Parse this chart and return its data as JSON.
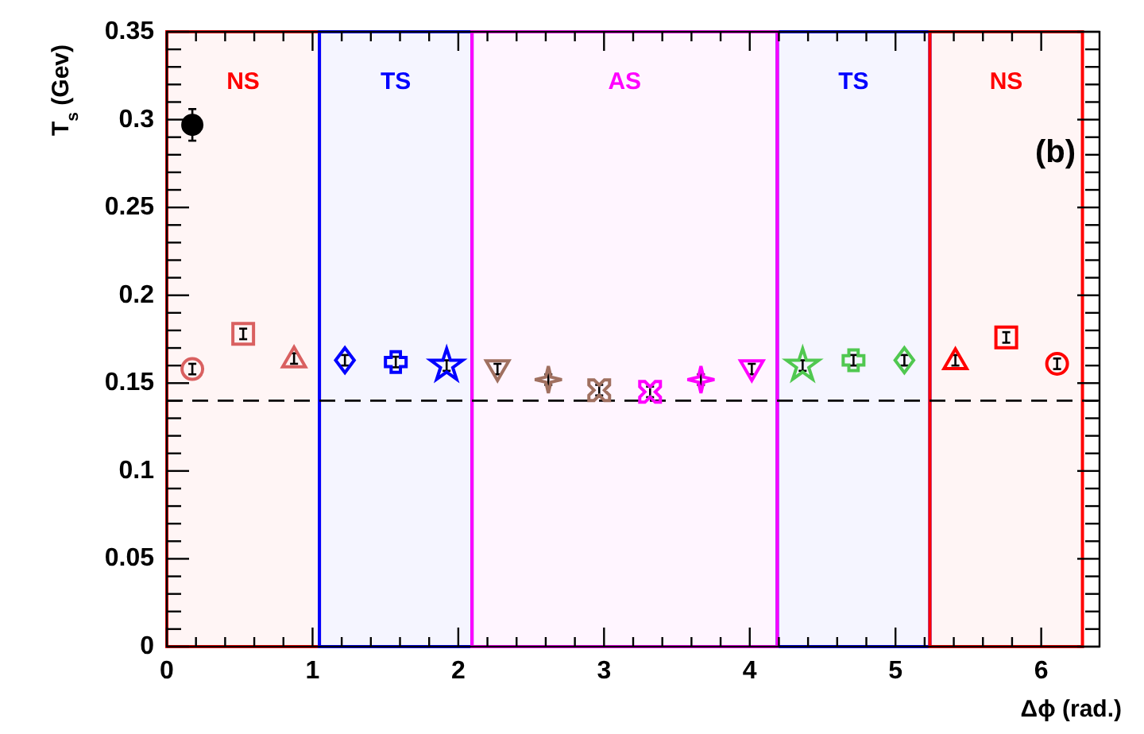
{
  "chart_data": {
    "type": "scatter",
    "xlabel": "Δϕ (rad.)",
    "ylabel": "T$_{s}$ (Gev)",
    "annotations": [
      "(b)"
    ],
    "xlim": [
      0,
      6.4
    ],
    "xticks": [
      0,
      1,
      2,
      3,
      4,
      5,
      6
    ],
    "ylim": [
      0,
      0.35
    ],
    "yticks": [
      0,
      0.05,
      0.1,
      0.15,
      0.2,
      0.25,
      0.3,
      0.35
    ],
    "grid": false,
    "ref_lines": [
      {
        "axis": "y",
        "value": 0.14,
        "color": "#000000",
        "line_style": "dashed"
      }
    ],
    "bands": [
      {
        "axis": "x",
        "from": 4.189,
        "to": 5.236,
        "label": "TS",
        "color": "#0000ff"
      },
      {
        "axis": "x",
        "from": 0,
        "to": 1.047,
        "label": "NS",
        "color": "#ff0000"
      },
      {
        "axis": "x",
        "from": 1.047,
        "to": 2.094,
        "label": "TS",
        "color": "#0000ff"
      },
      {
        "axis": "x",
        "from": 2.094,
        "to": 4.189,
        "label": "AS",
        "color": "#ff00ff"
      },
      {
        "axis": "x",
        "from": 5.236,
        "to": 6.283,
        "label": "NS",
        "color": "#ff0000"
      }
    ],
    "series": [
      {
        "marker": "circle",
        "x": [
          0.175,
          6.109
        ],
        "values": [
          0.158,
          0.161
        ],
        "errors": [
          0.003,
          0.003
        ],
        "colors": [
          "#d96060",
          "#ff0000"
        ]
      },
      {
        "marker": "square",
        "x": [
          0.524,
          5.76
        ],
        "values": [
          0.178,
          0.176
        ],
        "errors": [
          0.003,
          0.003
        ],
        "colors": [
          "#d96060",
          "#ff0000"
        ]
      },
      {
        "marker": "triangle",
        "x": [
          0.873,
          5.411
        ],
        "values": [
          0.164,
          0.163
        ],
        "errors": [
          0.003,
          0.003
        ],
        "colors": [
          "#d96060",
          "#ff0000"
        ]
      },
      {
        "marker": "diamond",
        "x": [
          1.222,
          5.061
        ],
        "values": [
          0.163,
          0.163
        ],
        "errors": [
          0.003,
          0.003
        ],
        "colors": [
          "#0000ff",
          "#50c850"
        ]
      },
      {
        "marker": "cross",
        "x": [
          1.571,
          4.712
        ],
        "values": [
          0.162,
          0.163
        ],
        "errors": [
          0.003,
          0.003
        ],
        "colors": [
          "#0000ff",
          "#50c850"
        ]
      },
      {
        "marker": "star",
        "x": [
          1.92,
          4.363
        ],
        "values": [
          0.16,
          0.16
        ],
        "errors": [
          0.003,
          0.003
        ],
        "colors": [
          "#0000ff",
          "#50c850"
        ]
      },
      {
        "marker": "triangle-down",
        "x": [
          2.269,
          4.014
        ],
        "values": [
          0.158,
          0.158
        ],
        "errors": [
          0.003,
          0.003
        ],
        "colors": [
          "#a07060",
          "#ff00ff"
        ]
      },
      {
        "marker": "star4",
        "x": [
          2.618,
          3.665
        ],
        "values": [
          0.152,
          0.152
        ],
        "errors": [
          0.003,
          0.003
        ],
        "colors": [
          "#a07060",
          "#ff00ff"
        ]
      },
      {
        "marker": "x",
        "x": [
          2.967,
          3.316
        ],
        "values": [
          0.146,
          0.145
        ],
        "errors": [
          0.003,
          0.003
        ],
        "colors": [
          "#a07060",
          "#ff00ff"
        ]
      },
      {
        "marker": "circle",
        "x": [
          0.175
        ],
        "values": [
          0.297
        ],
        "errors": [
          0.009
        ],
        "color": "#000000"
      }
    ]
  }
}
